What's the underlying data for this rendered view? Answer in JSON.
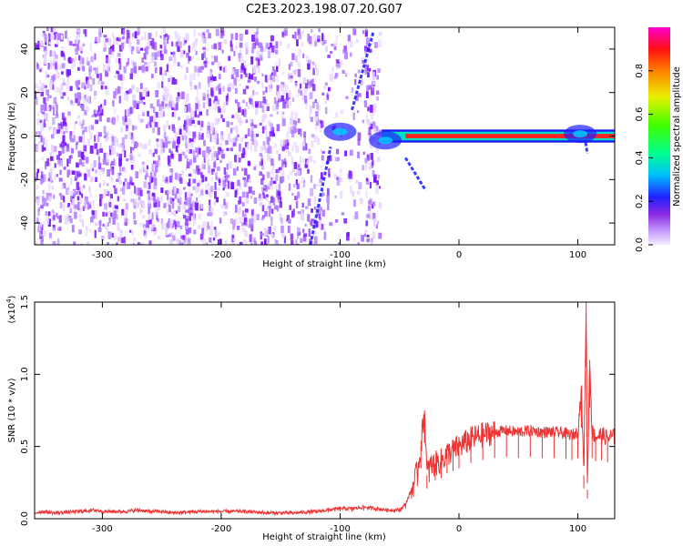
{
  "figure_title": "C2E3.2023.198.07.20.G07",
  "colors": {
    "axis": "#000000",
    "snr_line": "#ee3333",
    "cmap": [
      "#ffffff",
      "#e8d6ff",
      "#b07dff",
      "#7a16ff",
      "#1a1aff",
      "#00c8ff",
      "#00ff60",
      "#e0f000",
      "#ff7000",
      "#ff1010",
      "#ff00c8"
    ]
  },
  "chart_data": [
    {
      "type": "heatmap",
      "xlabel": "Height of straight line (km)",
      "ylabel": "Frequency (Hz)",
      "xlim": [
        -357,
        131
      ],
      "ylim": [
        -50,
        50
      ],
      "xticks": [
        -300,
        -200,
        -100,
        0,
        100
      ],
      "yticks": [
        -40,
        -20,
        0,
        20,
        40
      ],
      "xtick_labels": [
        "-300",
        "-200",
        "-100",
        "0",
        "100"
      ],
      "ytick_labels": [
        "-40",
        "-20",
        "0",
        "20",
        "40"
      ],
      "colorbar": {
        "label": "Normalized spectral amplitude",
        "range": [
          0,
          1
        ],
        "ticks": [
          0.0,
          0.2,
          0.4,
          0.6,
          0.8
        ],
        "tick_labels": [
          "0.0",
          "0.2",
          "0.4",
          "0.6",
          "0.8"
        ]
      },
      "features": {
        "noise_region_x": [
          -357,
          -67
        ],
        "noise_gap_x": [
          -115,
          -80
        ],
        "main_tone": {
          "x": [
            -65,
            131
          ],
          "freq_hz": 0,
          "amplitude": 0.85
        },
        "blobs": [
          {
            "x": -100,
            "y": 2,
            "amplitude": 0.3
          },
          {
            "x": -62,
            "y": -2,
            "amplitude": 0.3
          },
          {
            "x": 102,
            "y": 1,
            "amplitude": 0.5
          }
        ],
        "streaks": [
          {
            "from": [
              -125,
              -50
            ],
            "to": [
              -108,
              -5
            ]
          },
          {
            "from": [
              -90,
              12
            ],
            "to": [
              -72,
              48
            ]
          },
          {
            "from": [
              -45,
              -10
            ],
            "to": [
              -28,
              -25
            ]
          },
          {
            "from": [
              105,
              2
            ],
            "to": [
              108,
              -8
            ]
          }
        ]
      },
      "grid": false,
      "legend": "none"
    },
    {
      "type": "line",
      "xlabel": "Height of straight line (km)",
      "ylabel": "SNR (10 * v/v)",
      "y_multiplier": "(x10",
      "y_multiplier_exp": "4",
      "y_multiplier_close": ")",
      "xlim": [
        -357,
        131
      ],
      "ylim": [
        0,
        1.5
      ],
      "xticks": [
        -300,
        -200,
        -100,
        0,
        100
      ],
      "yticks": [
        0.0,
        0.5,
        1.0,
        1.5
      ],
      "xtick_labels": [
        "-300",
        "-200",
        "-100",
        "0",
        "100"
      ],
      "ytick_labels": [
        "0.0",
        "0.5",
        "1.0",
        "1.5"
      ],
      "series": [
        {
          "x": [
            -357,
            -350,
            -340,
            -320,
            -305,
            -300,
            -280,
            -270,
            -260,
            -250,
            -240,
            -220,
            -200,
            -180,
            -160,
            -140,
            -120,
            -110,
            -100,
            -90,
            -80,
            -70,
            -60,
            -50,
            -45,
            -40,
            -35,
            -32,
            -29,
            -27,
            -25,
            -20,
            -15,
            -10,
            -5,
            0,
            10,
            20,
            30,
            40,
            50,
            60,
            70,
            80,
            90,
            95,
            100,
            103,
            105,
            107,
            108,
            110,
            112,
            115,
            120,
            125,
            131
          ],
          "y": [
            0.04,
            0.05,
            0.04,
            0.05,
            0.06,
            0.05,
            0.05,
            0.06,
            0.05,
            0.05,
            0.04,
            0.05,
            0.05,
            0.05,
            0.04,
            0.04,
            0.05,
            0.06,
            0.07,
            0.07,
            0.08,
            0.07,
            0.06,
            0.06,
            0.1,
            0.2,
            0.32,
            0.5,
            0.75,
            0.3,
            0.36,
            0.38,
            0.4,
            0.45,
            0.47,
            0.5,
            0.55,
            0.58,
            0.6,
            0.61,
            0.6,
            0.61,
            0.6,
            0.6,
            0.59,
            0.58,
            0.6,
            0.9,
            0.3,
            1.5,
            0.2,
            1.1,
            0.6,
            0.57,
            0.58,
            0.56,
            0.57
          ]
        }
      ],
      "grid": false,
      "legend": "none"
    }
  ]
}
